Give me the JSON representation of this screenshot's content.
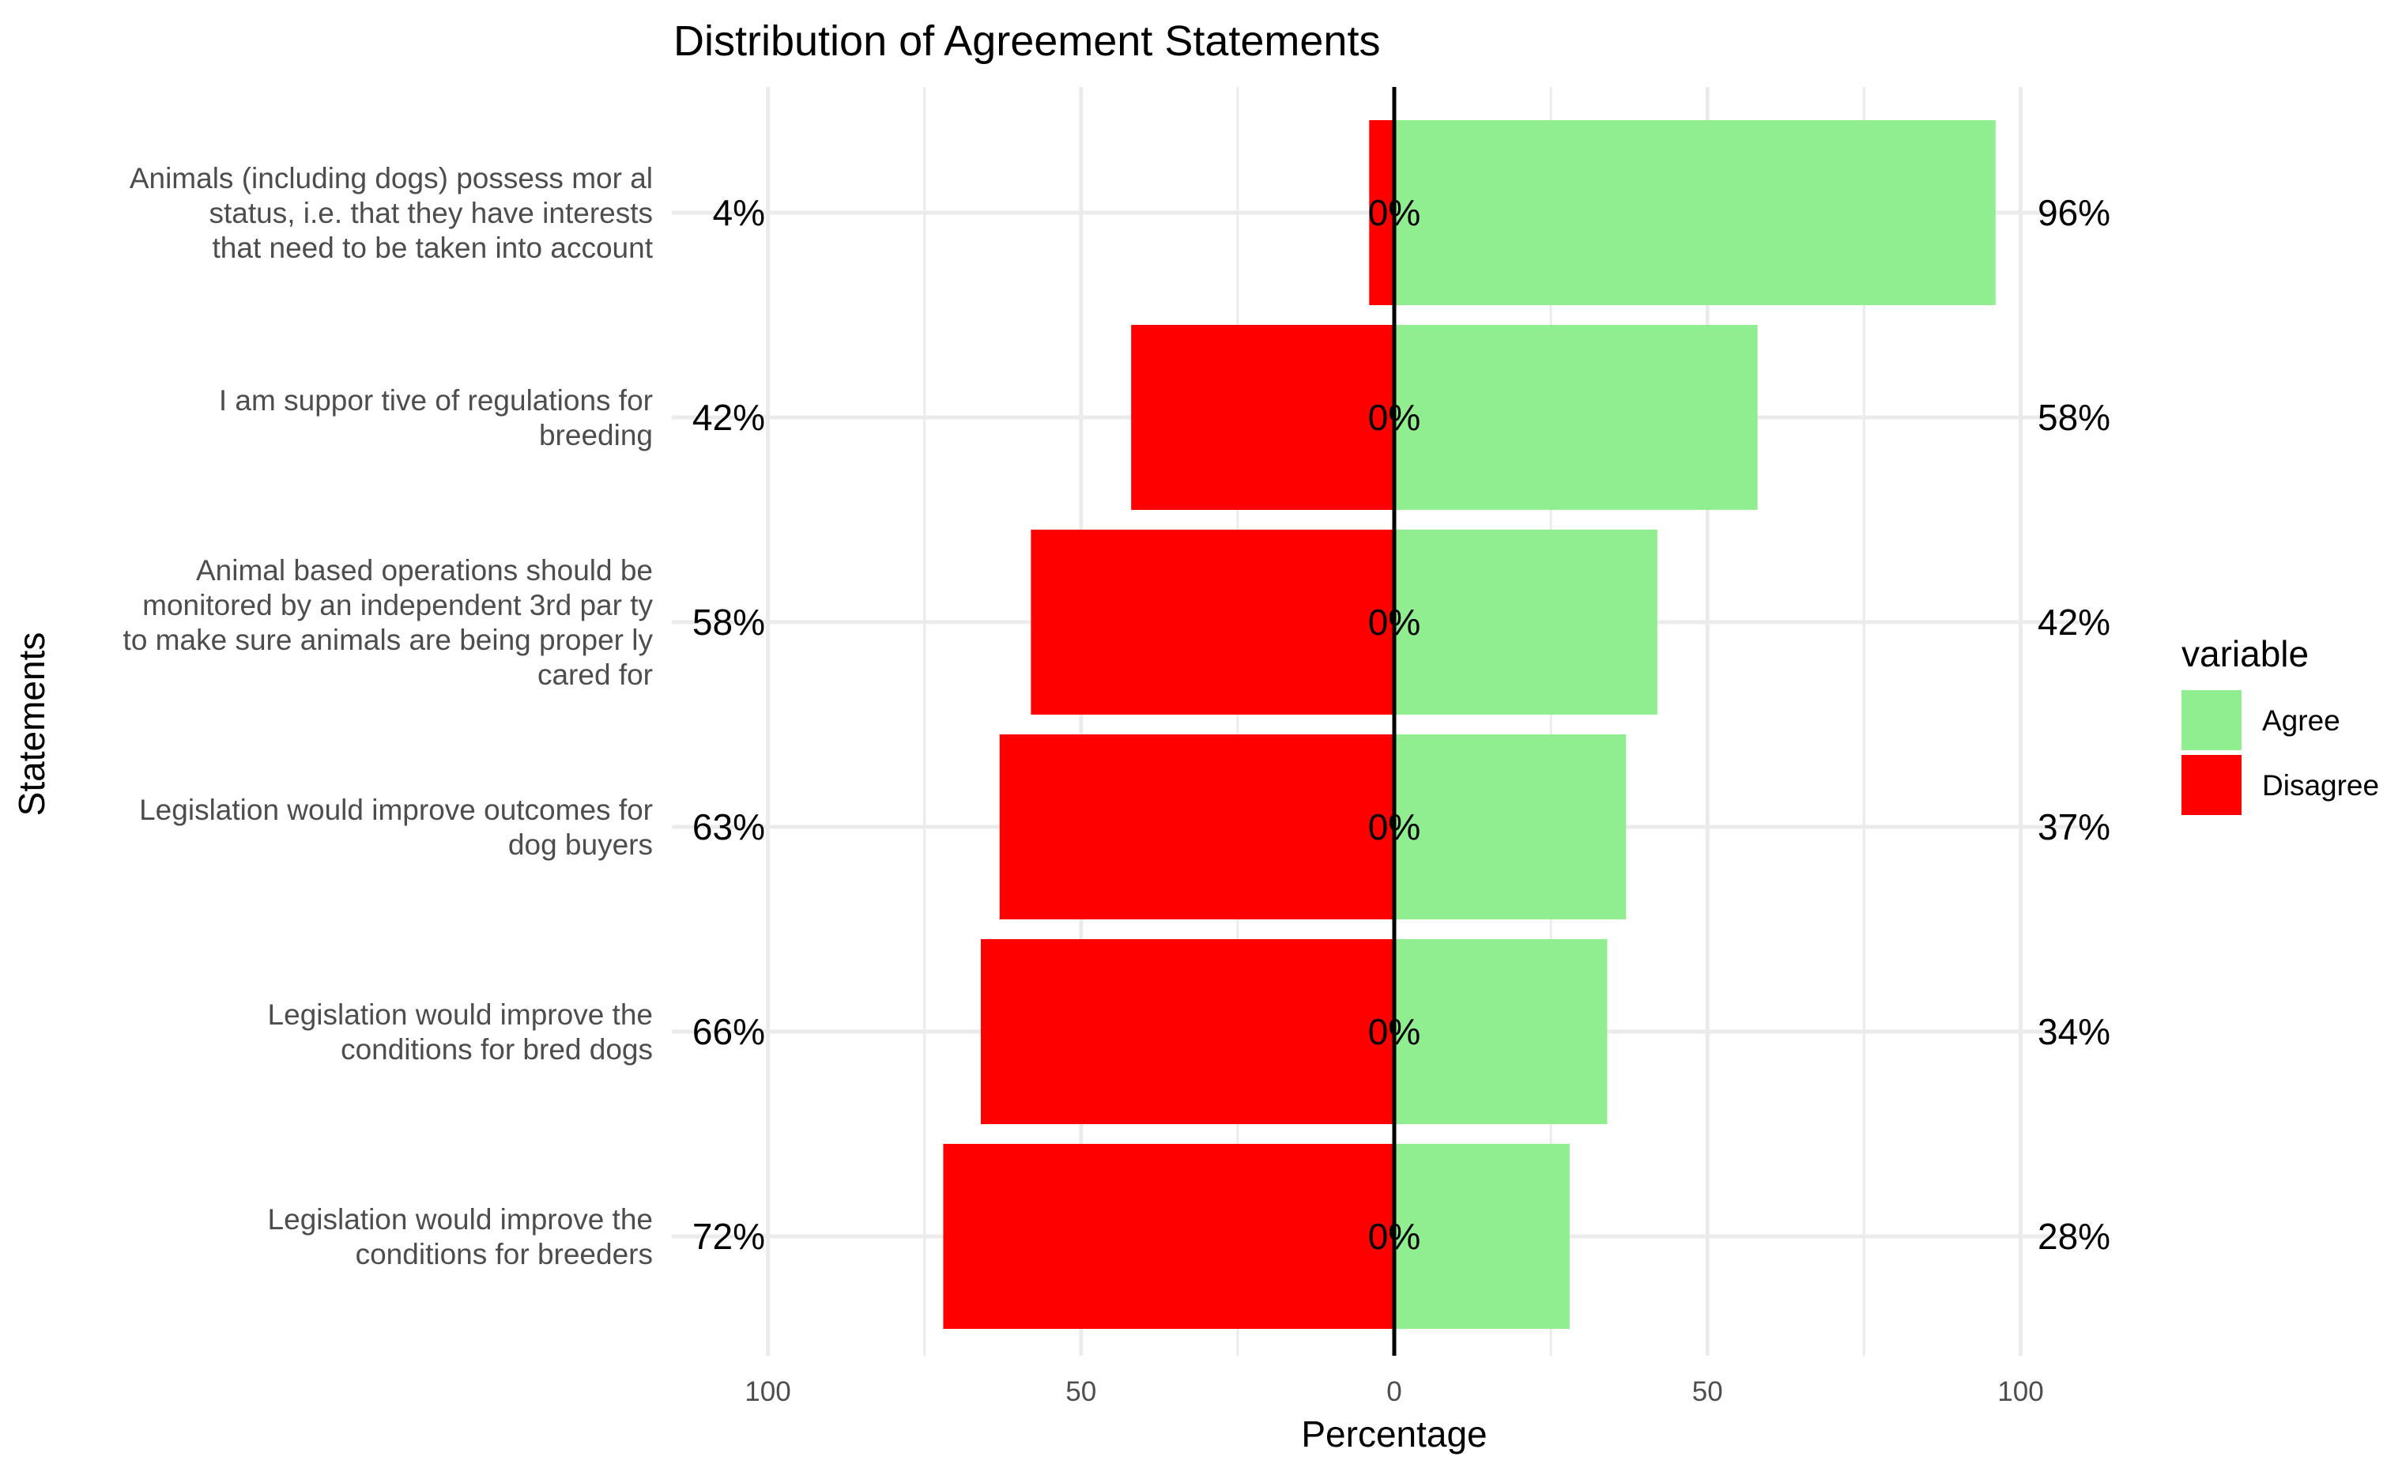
{
  "chart_data": {
    "type": "bar",
    "orientation": "horizontal",
    "stacked": "diverging",
    "title": "Distribution of Agreement Statements",
    "xlabel": "Percentage",
    "ylabel": "Statements",
    "xlim": [
      -100,
      100
    ],
    "x_ticks": [
      -100,
      -50,
      0,
      50,
      100
    ],
    "x_tick_labels": [
      "100",
      "50",
      "0",
      "50",
      "100"
    ],
    "grid": true,
    "legend_position": "right",
    "legend_title": "variable",
    "categories": [
      "Animals (including dogs) possess mor al\nstatus, i.e. that they have interests\nthat need to be taken into account",
      "I am suppor tive of regulations for\nbreeding",
      "Animal based operations should be\nmonitored by an independent 3rd par ty\nto make sure animals are being proper ly\ncared for",
      "Legislation would improve outcomes for\ndog buyers",
      "Legislation would improve the\nconditions for bred dogs",
      "Legislation would improve the\nconditions for breeders"
    ],
    "series": [
      {
        "name": "Agree",
        "color": "#90EE90",
        "values": [
          96,
          58,
          42,
          37,
          34,
          28
        ],
        "labels": [
          "96%",
          "58%",
          "42%",
          "37%",
          "34%",
          "28%"
        ]
      },
      {
        "name": "Disagree",
        "color": "#FF0000",
        "values": [
          4,
          42,
          58,
          63,
          66,
          72
        ],
        "labels": [
          "4%",
          "42%",
          "58%",
          "63%",
          "66%",
          "72%"
        ]
      }
    ],
    "center_labels": [
      "0%",
      "0%",
      "0%",
      "0%",
      "0%",
      "0%"
    ]
  }
}
